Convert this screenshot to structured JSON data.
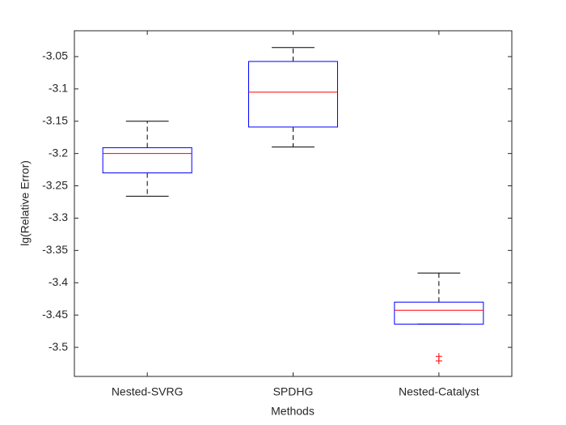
{
  "chart_data": {
    "type": "box",
    "xlabel": "Methods",
    "ylabel": "lg(Relative Error)",
    "categories": [
      "Nested-SVRG",
      "SPDHG",
      "Nested-Catalyst"
    ],
    "boxes": [
      {
        "whislo": -3.266,
        "q1": -3.23,
        "med": -3.2,
        "q3": -3.191,
        "whishi": -3.15,
        "fliers": []
      },
      {
        "whislo": -3.19,
        "q1": -3.159,
        "med": -3.105,
        "q3": -3.0575,
        "whishi": -3.036,
        "fliers": []
      },
      {
        "whislo": -3.464,
        "q1": -3.464,
        "med": -3.4425,
        "q3": -3.43,
        "whishi": -3.385,
        "fliers": [
          -3.514,
          -3.521
        ]
      }
    ],
    "box_color": "#0000ff",
    "median_color": "#ff0000",
    "whisker_color": "#000000",
    "flier_color": "#ff0000",
    "ylim": [
      -3.545,
      -3.01
    ],
    "yticks": [
      -3.5,
      -3.45,
      -3.4,
      -3.35,
      -3.3,
      -3.25,
      -3.2,
      -3.15,
      -3.1,
      -3.05
    ]
  }
}
